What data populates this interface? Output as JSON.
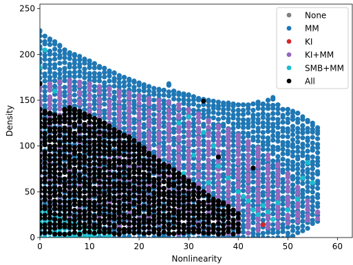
{
  "chart_data": {
    "type": "scatter",
    "title": "",
    "xlabel": "Nonlinearity",
    "ylabel": "Density",
    "xlim": [
      0,
      63
    ],
    "ylim": [
      0,
      255
    ],
    "xticks": [
      0,
      10,
      20,
      30,
      40,
      50,
      60
    ],
    "yticks": [
      0,
      50,
      100,
      150,
      200,
      250
    ],
    "grid": false,
    "legend_position": "top-right",
    "legend": [
      {
        "name": "None",
        "color": "#808080"
      },
      {
        "name": "MM",
        "color": "#1f77b4"
      },
      {
        "name": "KI",
        "color": "#d62728"
      },
      {
        "name": "KI+MM",
        "color": "#9467bd"
      },
      {
        "name": "SMB+MM",
        "color": "#17becf"
      },
      {
        "name": "All",
        "color": "#000000"
      }
    ],
    "series": [
      {
        "name": "MM",
        "color": "#1f77b4",
        "bands": [
          [
            0,
            0,
            226
          ],
          [
            1,
            0,
            220
          ],
          [
            2,
            0,
            217
          ],
          [
            3,
            0,
            214
          ],
          [
            4,
            0,
            210
          ],
          [
            5,
            0,
            205
          ],
          [
            6,
            0,
            202
          ],
          [
            7,
            0,
            200
          ],
          [
            8,
            0,
            198
          ],
          [
            9,
            0,
            195
          ],
          [
            10,
            0,
            193
          ],
          [
            11,
            0,
            190
          ],
          [
            12,
            0,
            187
          ],
          [
            13,
            0,
            185
          ],
          [
            14,
            0,
            182
          ],
          [
            15,
            0,
            180
          ],
          [
            16,
            0,
            177
          ],
          [
            17,
            0,
            175
          ],
          [
            18,
            0,
            173
          ],
          [
            19,
            0,
            171
          ],
          [
            20,
            0,
            169
          ],
          [
            21,
            0,
            167
          ],
          [
            22,
            0,
            165
          ],
          [
            23,
            0,
            163
          ],
          [
            24,
            0,
            162
          ],
          [
            25,
            0,
            161
          ],
          [
            26,
            0,
            168
          ],
          [
            27,
            0,
            160
          ],
          [
            28,
            0,
            158
          ],
          [
            29,
            0,
            157
          ],
          [
            30,
            0,
            156
          ],
          [
            31,
            0,
            154
          ],
          [
            32,
            0,
            152
          ],
          [
            33,
            0,
            151
          ],
          [
            34,
            0,
            150
          ],
          [
            35,
            0,
            149
          ],
          [
            36,
            0,
            148
          ],
          [
            37,
            0,
            147
          ],
          [
            38,
            0,
            147
          ],
          [
            39,
            0,
            146
          ],
          [
            40,
            0,
            145
          ],
          [
            41,
            0,
            145
          ],
          [
            42,
            0,
            145
          ],
          [
            43,
            0,
            146
          ],
          [
            44,
            0,
            148
          ],
          [
            45,
            0,
            146
          ],
          [
            46,
            0,
            150
          ],
          [
            47,
            0,
            153
          ],
          [
            48,
            0,
            145
          ],
          [
            49,
            0,
            140
          ],
          [
            50,
            0,
            140
          ],
          [
            51,
            3,
            138
          ],
          [
            52,
            5,
            136
          ],
          [
            53,
            8,
            132
          ],
          [
            54,
            10,
            128
          ],
          [
            55,
            14,
            125
          ],
          [
            56,
            18,
            120
          ]
        ]
      },
      {
        "name": "KI+MM",
        "color": "#9467bd",
        "bands": [
          [
            0,
            40,
            165
          ],
          [
            2,
            35,
            168
          ],
          [
            4,
            30,
            170
          ],
          [
            6,
            25,
            172
          ],
          [
            8,
            20,
            170
          ],
          [
            10,
            15,
            168
          ],
          [
            12,
            12,
            165
          ],
          [
            14,
            10,
            163
          ],
          [
            16,
            8,
            160
          ],
          [
            18,
            8,
            158
          ],
          [
            20,
            6,
            155
          ],
          [
            22,
            5,
            152
          ],
          [
            24,
            5,
            150
          ],
          [
            26,
            5,
            148
          ],
          [
            28,
            5,
            145
          ],
          [
            30,
            5,
            140
          ],
          [
            32,
            5,
            135
          ],
          [
            34,
            5,
            128
          ],
          [
            36,
            5,
            122
          ],
          [
            38,
            5,
            118
          ],
          [
            40,
            5,
            112
          ],
          [
            42,
            5,
            105
          ],
          [
            44,
            8,
            98
          ],
          [
            46,
            10,
            90
          ],
          [
            48,
            12,
            80
          ],
          [
            50,
            15,
            70
          ],
          [
            52,
            18,
            55
          ],
          [
            54,
            20,
            40
          ],
          [
            56,
            22,
            28
          ]
        ]
      },
      {
        "name": "SMB+MM",
        "color": "#17becf",
        "bands": [
          [
            0,
            0,
            30
          ],
          [
            1,
            0,
            28
          ],
          [
            2,
            0,
            26
          ],
          [
            3,
            0,
            24
          ],
          [
            4,
            0,
            22
          ],
          [
            5,
            0,
            20
          ],
          [
            6,
            0,
            18
          ],
          [
            7,
            0,
            16
          ],
          [
            8,
            0,
            14
          ],
          [
            9,
            0,
            12
          ],
          [
            10,
            0,
            10
          ],
          [
            11,
            0,
            9
          ],
          [
            12,
            0,
            8
          ],
          [
            13,
            0,
            7
          ],
          [
            14,
            0,
            6
          ]
        ],
        "extra": [
          [
            0,
            186
          ],
          [
            1,
            120
          ],
          [
            2,
            98
          ],
          [
            3,
            160
          ],
          [
            1,
            205
          ],
          [
            28,
            125
          ],
          [
            30,
            132
          ],
          [
            33,
            115
          ],
          [
            35,
            100
          ],
          [
            36,
            78
          ],
          [
            38,
            65
          ],
          [
            40,
            50
          ],
          [
            41,
            45
          ],
          [
            42,
            40
          ],
          [
            43,
            30
          ],
          [
            44,
            25
          ],
          [
            45,
            35
          ],
          [
            46,
            28
          ],
          [
            48,
            38
          ],
          [
            50,
            30
          ],
          [
            52,
            42
          ],
          [
            53,
            65
          ],
          [
            54,
            82
          ],
          [
            55,
            60
          ],
          [
            47,
            20
          ],
          [
            39,
            30
          ],
          [
            37,
            22
          ],
          [
            31,
            90
          ],
          [
            29,
            70
          ],
          [
            34,
            60
          ]
        ]
      },
      {
        "name": "All",
        "color": "#000000",
        "bands": [
          [
            0,
            5,
            140
          ],
          [
            1,
            5,
            138
          ],
          [
            2,
            5,
            136
          ],
          [
            3,
            5,
            134
          ],
          [
            4,
            5,
            132
          ],
          [
            5,
            5,
            140
          ],
          [
            6,
            5,
            142
          ],
          [
            7,
            5,
            140
          ],
          [
            8,
            5,
            138
          ],
          [
            9,
            5,
            135
          ],
          [
            10,
            5,
            133
          ],
          [
            11,
            5,
            130
          ],
          [
            12,
            5,
            128
          ],
          [
            13,
            5,
            125
          ],
          [
            14,
            5,
            122
          ],
          [
            15,
            5,
            118
          ],
          [
            16,
            5,
            115
          ],
          [
            17,
            5,
            112
          ],
          [
            18,
            5,
            110
          ],
          [
            19,
            5,
            106
          ],
          [
            20,
            5,
            102
          ],
          [
            21,
            5,
            98
          ],
          [
            22,
            5,
            92
          ],
          [
            23,
            5,
            88
          ],
          [
            24,
            5,
            84
          ],
          [
            25,
            5,
            80
          ],
          [
            26,
            5,
            78
          ],
          [
            27,
            5,
            74
          ],
          [
            28,
            5,
            70
          ],
          [
            29,
            5,
            66
          ],
          [
            30,
            5,
            62
          ],
          [
            31,
            5,
            58
          ],
          [
            32,
            5,
            54
          ],
          [
            33,
            5,
            50
          ],
          [
            34,
            5,
            46
          ],
          [
            35,
            5,
            42
          ],
          [
            36,
            5,
            40
          ],
          [
            37,
            5,
            38
          ],
          [
            38,
            5,
            34
          ],
          [
            39,
            5,
            30
          ],
          [
            40,
            5,
            26
          ]
        ],
        "extra": [
          [
            0,
            168
          ],
          [
            33,
            149
          ],
          [
            36,
            88
          ],
          [
            43,
            76
          ]
        ]
      },
      {
        "name": "KI",
        "color": "#d62728",
        "points": [
          [
            45,
            14
          ]
        ]
      },
      {
        "name": "None",
        "color": "#808080",
        "points": []
      }
    ]
  }
}
